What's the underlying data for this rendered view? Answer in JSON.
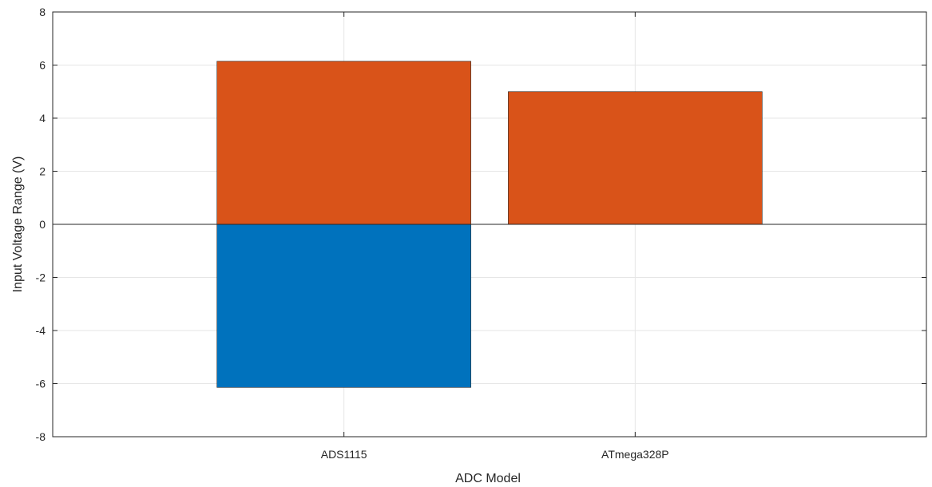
{
  "chart_data": {
    "type": "bar",
    "categories": [
      "ADS1115",
      "ATmega328P"
    ],
    "series": [
      {
        "values": [
          -6.144,
          0
        ],
        "color": "#0072BD"
      },
      {
        "values": [
          6.144,
          5
        ],
        "color": "#D95319"
      }
    ],
    "xlabel": "ADC Model",
    "ylabel": "Input Voltage Range (V)",
    "ylim": [
      -8,
      8
    ],
    "yticks": [
      -8,
      -6,
      -4,
      -2,
      0,
      2,
      4,
      6,
      8
    ],
    "grid": true
  }
}
